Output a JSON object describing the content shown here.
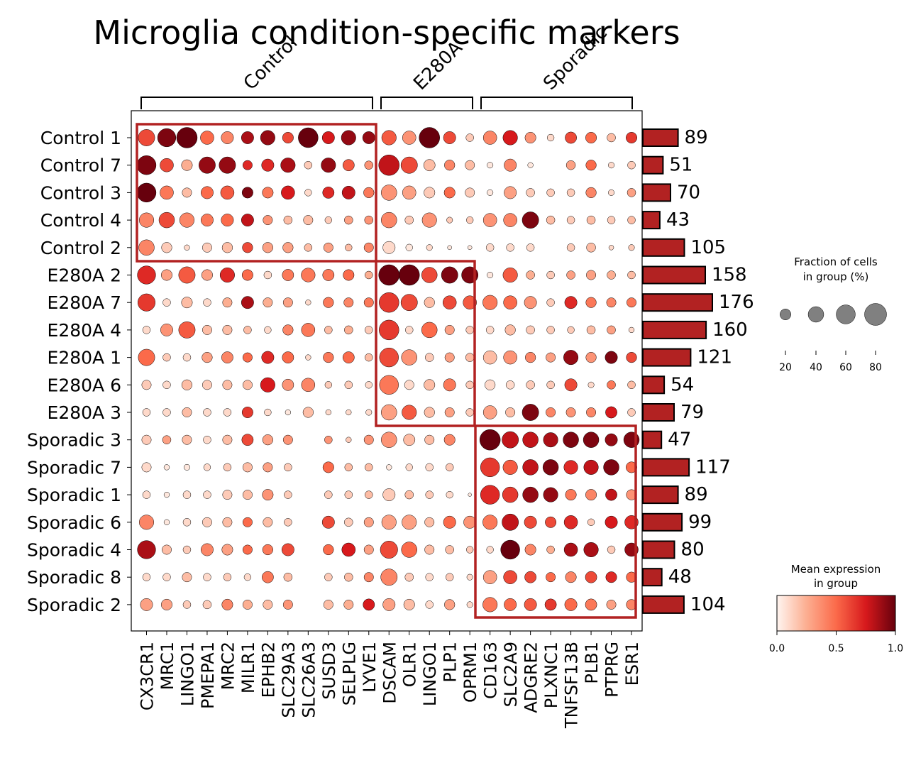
{
  "chart_data": {
    "type": "dotplot",
    "title": "Microglia condition-specific markers",
    "groups": [
      {
        "name": "Control",
        "n_genes": 12
      },
      {
        "name": "E280A",
        "n_genes": 5
      },
      {
        "name": "Sporadic",
        "n_genes": 8
      }
    ],
    "genes": [
      "CX3CR1",
      "MRC1",
      "LINGO1",
      "PMEPA1",
      "MRC2",
      "MILR1",
      "EPHB2",
      "SLC29A3",
      "SLC26A3",
      "SUSD3",
      "SELPLG",
      "LYVE1",
      "DSCAM",
      "OLR1",
      "LINGO1",
      "PLP1",
      "OPRM1",
      "CD163",
      "SLC2A9",
      "ADGRE2",
      "PLXNC1",
      "TNFSF13B",
      "PLB1",
      "PTPRG",
      "ESR1"
    ],
    "rows": [
      "Control 1",
      "Control 7",
      "Control 3",
      "Control 4",
      "Control 2",
      "E280A 2",
      "E280A 7",
      "E280A 4",
      "E280A 1",
      "E280A 6",
      "E280A 3",
      "Sporadic 3",
      "Sporadic 7",
      "Sporadic 1",
      "Sporadic 6",
      "Sporadic 4",
      "Sporadic 8",
      "Sporadic 2"
    ],
    "cell_counts": [
      89,
      51,
      70,
      43,
      105,
      158,
      176,
      160,
      121,
      54,
      79,
      47,
      117,
      89,
      99,
      80,
      48,
      104
    ],
    "fraction_pct": [
      [
        45,
        55,
        70,
        30,
        25,
        25,
        35,
        20,
        65,
        25,
        35,
        25,
        35,
        30,
        70,
        25,
        10,
        30,
        35,
        20,
        8,
        22,
        20,
        12,
        20
      ],
      [
        60,
        30,
        20,
        45,
        45,
        15,
        25,
        35,
        10,
        35,
        22,
        12,
        70,
        45,
        22,
        18,
        15,
        6,
        25,
        5,
        0,
        14,
        18,
        6,
        10
      ],
      [
        60,
        30,
        15,
        25,
        30,
        20,
        20,
        30,
        8,
        22,
        28,
        18,
        40,
        30,
        20,
        20,
        15,
        6,
        25,
        12,
        10,
        10,
        18,
        6,
        12
      ],
      [
        35,
        40,
        35,
        25,
        25,
        25,
        15,
        12,
        15,
        8,
        12,
        12,
        40,
        12,
        35,
        6,
        8,
        30,
        30,
        45,
        12,
        10,
        12,
        10,
        10
      ],
      [
        40,
        18,
        5,
        15,
        18,
        18,
        18,
        18,
        10,
        15,
        8,
        15,
        25,
        8,
        6,
        3,
        3,
        10,
        10,
        10,
        0,
        10,
        14,
        4,
        6
      ],
      [
        55,
        20,
        45,
        20,
        35,
        20,
        10,
        22,
        32,
        22,
        20,
        10,
        70,
        70,
        40,
        45,
        45,
        6,
        35,
        12,
        10,
        12,
        15,
        12,
        10
      ],
      [
        50,
        10,
        20,
        10,
        15,
        25,
        15,
        15,
        5,
        18,
        15,
        15,
        65,
        45,
        18,
        30,
        30,
        35,
        30,
        25,
        10,
        25,
        18,
        15,
        15
      ],
      [
        10,
        25,
        45,
        15,
        15,
        10,
        8,
        18,
        30,
        10,
        12,
        10,
        65,
        10,
        40,
        15,
        10,
        10,
        18,
        12,
        10,
        8,
        12,
        12,
        5
      ],
      [
        45,
        10,
        10,
        18,
        22,
        15,
        25,
        22,
        5,
        18,
        22,
        10,
        60,
        40,
        12,
        15,
        12,
        30,
        30,
        18,
        15,
        35,
        18,
        25,
        18
      ],
      [
        15,
        10,
        18,
        15,
        15,
        15,
        35,
        22,
        30,
        8,
        10,
        8,
        60,
        15,
        20,
        25,
        10,
        18,
        12,
        12,
        10,
        25,
        6,
        12,
        10
      ],
      [
        10,
        10,
        15,
        10,
        10,
        20,
        8,
        5,
        18,
        5,
        5,
        6,
        40,
        35,
        18,
        15,
        10,
        30,
        15,
        45,
        15,
        15,
        15,
        22,
        10
      ],
      [
        15,
        12,
        15,
        10,
        15,
        22,
        18,
        15,
        0,
        10,
        5,
        15,
        40,
        22,
        15,
        20,
        0,
        70,
        45,
        40,
        35,
        40,
        40,
        25,
        40
      ],
      [
        15,
        5,
        6,
        8,
        10,
        15,
        15,
        10,
        0,
        20,
        10,
        10,
        5,
        8,
        10,
        10,
        0,
        60,
        35,
        40,
        40,
        32,
        35,
        40,
        20
      ],
      [
        10,
        5,
        10,
        10,
        15,
        15,
        20,
        10,
        0,
        10,
        10,
        10,
        25,
        12,
        10,
        8,
        2,
        60,
        40,
        40,
        35,
        20,
        20,
        22,
        18
      ],
      [
        35,
        5,
        10,
        15,
        15,
        15,
        15,
        10,
        0,
        25,
        12,
        15,
        35,
        35,
        15,
        25,
        25,
        35,
        45,
        25,
        20,
        30,
        8,
        25,
        30
      ],
      [
        55,
        15,
        10,
        25,
        20,
        15,
        18,
        25,
        0,
        18,
        30,
        15,
        50,
        40,
        15,
        12,
        8,
        8,
        60,
        20,
        10,
        30,
        35,
        10,
        30
      ],
      [
        10,
        10,
        15,
        10,
        10,
        8,
        22,
        12,
        0,
        10,
        12,
        15,
        45,
        12,
        10,
        10,
        6,
        30,
        30,
        22,
        15,
        20,
        22,
        20,
        18
      ],
      [
        25,
        20,
        10,
        12,
        20,
        15,
        15,
        15,
        0,
        15,
        15,
        22,
        25,
        20,
        10,
        18,
        6,
        35,
        25,
        25,
        22,
        25,
        22,
        15,
        18
      ]
    ],
    "mean_expression": [
      [
        0.6,
        0.95,
        1.0,
        0.5,
        0.4,
        0.85,
        0.9,
        0.6,
        1.0,
        0.75,
        0.9,
        0.9,
        0.55,
        0.35,
        1.0,
        0.6,
        0.15,
        0.4,
        0.75,
        0.35,
        0.1,
        0.6,
        0.5,
        0.2,
        0.65
      ],
      [
        0.95,
        0.6,
        0.25,
        0.9,
        0.9,
        0.7,
        0.7,
        0.85,
        0.15,
        0.9,
        0.55,
        0.35,
        0.8,
        0.6,
        0.2,
        0.4,
        0.2,
        0.05,
        0.4,
        0.05,
        0.0,
        0.3,
        0.5,
        0.1,
        0.15
      ],
      [
        1.0,
        0.45,
        0.2,
        0.5,
        0.55,
        0.95,
        0.45,
        0.75,
        0.1,
        0.7,
        0.8,
        0.45,
        0.35,
        0.3,
        0.15,
        0.5,
        0.15,
        0.05,
        0.3,
        0.15,
        0.15,
        0.15,
        0.4,
        0.1,
        0.3
      ],
      [
        0.4,
        0.6,
        0.4,
        0.45,
        0.5,
        0.8,
        0.35,
        0.2,
        0.2,
        0.15,
        0.3,
        0.35,
        0.4,
        0.15,
        0.35,
        0.15,
        0.15,
        0.35,
        0.4,
        0.95,
        0.2,
        0.15,
        0.2,
        0.15,
        0.2
      ],
      [
        0.4,
        0.15,
        0.1,
        0.15,
        0.2,
        0.6,
        0.3,
        0.3,
        0.2,
        0.3,
        0.2,
        0.4,
        0.1,
        0.05,
        0.1,
        0.05,
        0.05,
        0.1,
        0.1,
        0.1,
        0.0,
        0.15,
        0.2,
        0.1,
        0.15
      ],
      [
        0.7,
        0.3,
        0.55,
        0.3,
        0.7,
        0.5,
        0.1,
        0.45,
        0.45,
        0.45,
        0.5,
        0.25,
        1.0,
        1.0,
        0.6,
        0.95,
        0.95,
        0.05,
        0.55,
        0.25,
        0.15,
        0.3,
        0.3,
        0.25,
        0.2
      ],
      [
        0.65,
        0.1,
        0.2,
        0.1,
        0.25,
        0.85,
        0.25,
        0.3,
        0.1,
        0.45,
        0.4,
        0.45,
        0.65,
        0.6,
        0.2,
        0.6,
        0.55,
        0.45,
        0.5,
        0.35,
        0.15,
        0.7,
        0.45,
        0.4,
        0.45
      ],
      [
        0.1,
        0.35,
        0.55,
        0.2,
        0.2,
        0.2,
        0.1,
        0.4,
        0.45,
        0.2,
        0.25,
        0.15,
        0.65,
        0.1,
        0.5,
        0.3,
        0.15,
        0.1,
        0.2,
        0.15,
        0.15,
        0.15,
        0.2,
        0.3,
        0.1
      ],
      [
        0.5,
        0.15,
        0.1,
        0.3,
        0.4,
        0.5,
        0.7,
        0.5,
        0.1,
        0.45,
        0.5,
        0.2,
        0.6,
        0.35,
        0.15,
        0.3,
        0.2,
        0.2,
        0.35,
        0.4,
        0.3,
        0.9,
        0.35,
        0.95,
        0.6
      ],
      [
        0.15,
        0.1,
        0.2,
        0.15,
        0.2,
        0.2,
        0.75,
        0.35,
        0.4,
        0.15,
        0.15,
        0.1,
        0.45,
        0.1,
        0.2,
        0.45,
        0.15,
        0.1,
        0.1,
        0.15,
        0.15,
        0.6,
        0.1,
        0.45,
        0.2
      ],
      [
        0.1,
        0.1,
        0.2,
        0.1,
        0.1,
        0.65,
        0.1,
        0.05,
        0.2,
        0.1,
        0.1,
        0.1,
        0.3,
        0.55,
        0.2,
        0.3,
        0.15,
        0.3,
        0.2,
        0.95,
        0.4,
        0.35,
        0.4,
        0.75,
        0.15
      ],
      [
        0.15,
        0.3,
        0.2,
        0.1,
        0.2,
        0.6,
        0.3,
        0.35,
        0.0,
        0.35,
        0.15,
        0.35,
        0.35,
        0.2,
        0.2,
        0.4,
        0.0,
        1.0,
        0.8,
        0.8,
        0.85,
        0.95,
        0.95,
        0.9,
        0.95
      ],
      [
        0.1,
        0.05,
        0.05,
        0.1,
        0.15,
        0.2,
        0.3,
        0.15,
        0.0,
        0.5,
        0.2,
        0.2,
        0.05,
        0.1,
        0.1,
        0.15,
        0.0,
        0.65,
        0.55,
        0.8,
        0.95,
        0.7,
        0.8,
        0.95,
        0.5
      ],
      [
        0.1,
        0.05,
        0.1,
        0.1,
        0.15,
        0.2,
        0.35,
        0.15,
        0.0,
        0.15,
        0.15,
        0.2,
        0.15,
        0.2,
        0.15,
        0.1,
        0.05,
        0.7,
        0.65,
        0.9,
        0.9,
        0.45,
        0.4,
        0.8,
        0.35
      ],
      [
        0.4,
        0.05,
        0.1,
        0.15,
        0.2,
        0.5,
        0.2,
        0.15,
        0.0,
        0.6,
        0.15,
        0.3,
        0.3,
        0.3,
        0.2,
        0.5,
        0.35,
        0.45,
        0.8,
        0.6,
        0.6,
        0.7,
        0.15,
        0.75,
        0.7
      ],
      [
        0.85,
        0.2,
        0.15,
        0.4,
        0.3,
        0.5,
        0.45,
        0.6,
        0.0,
        0.5,
        0.75,
        0.3,
        0.6,
        0.5,
        0.2,
        0.2,
        0.15,
        0.1,
        1.0,
        0.4,
        0.25,
        0.85,
        0.85,
        0.15,
        0.9
      ],
      [
        0.1,
        0.1,
        0.2,
        0.1,
        0.15,
        0.1,
        0.45,
        0.2,
        0.0,
        0.15,
        0.2,
        0.4,
        0.4,
        0.15,
        0.1,
        0.15,
        0.1,
        0.3,
        0.6,
        0.6,
        0.5,
        0.4,
        0.6,
        0.7,
        0.5
      ],
      [
        0.3,
        0.3,
        0.15,
        0.15,
        0.4,
        0.25,
        0.2,
        0.35,
        0.0,
        0.2,
        0.25,
        0.75,
        0.3,
        0.2,
        0.1,
        0.3,
        0.1,
        0.45,
        0.5,
        0.55,
        0.65,
        0.5,
        0.45,
        0.3,
        0.4
      ]
    ],
    "size_legend": {
      "title": "Fraction of cells\nin group (%)",
      "ticks": [
        20,
        40,
        60,
        80
      ]
    },
    "color_legend": {
      "title": "Mean expression\nin group",
      "colormap": "Reds",
      "ticks": [
        "0.0",
        "0.5",
        "1.0"
      ]
    },
    "bar_color": "#b22222",
    "highlight_box_color": "#b22222"
  }
}
